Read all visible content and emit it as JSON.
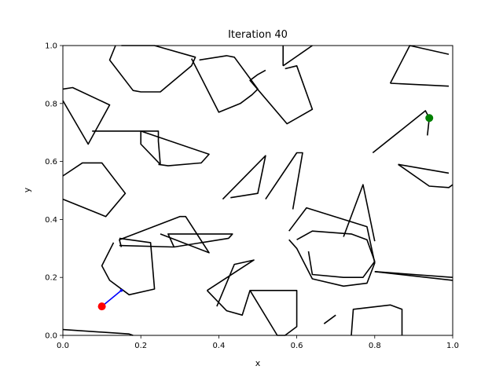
{
  "chart_data": {
    "type": "line",
    "title": "Iteration 40",
    "xlabel": "x",
    "ylabel": "y",
    "xlim": [
      0,
      1
    ],
    "ylim": [
      0,
      1
    ],
    "xticks": [
      "0.0",
      "0.2",
      "0.4",
      "0.6",
      "0.8",
      "1.0"
    ],
    "yticks": [
      "0.0",
      "0.2",
      "0.4",
      "0.6",
      "0.8",
      "1.0"
    ],
    "grid": false,
    "start": {
      "x": 0.1,
      "y": 0.1,
      "color": "#ff0000"
    },
    "goal": {
      "x": 0.94,
      "y": 0.75,
      "color": "#008000"
    },
    "path": {
      "color": "#0000ff",
      "points": [
        [
          0.1,
          0.1
        ],
        [
          0.15,
          0.155
        ]
      ]
    },
    "obstacles": [
      [
        [
          0.0,
          0.85
        ],
        [
          0.025,
          0.855
        ],
        [
          0.12,
          0.795
        ],
        [
          0.065,
          0.66
        ],
        [
          0.0,
          0.81
        ]
      ],
      [
        [
          0.15,
          1.0
        ],
        [
          0.235,
          1.0
        ],
        [
          0.34,
          0.96
        ],
        [
          0.33,
          0.93
        ],
        [
          0.25,
          0.84
        ],
        [
          0.2,
          0.84
        ],
        [
          0.18,
          0.845
        ],
        [
          0.12,
          0.95
        ],
        [
          0.135,
          1.0
        ]
      ],
      [
        [
          0.075,
          0.705
        ],
        [
          0.245,
          0.705
        ],
        [
          0.245,
          0.67
        ],
        [
          0.25,
          0.59
        ],
        [
          0.2,
          0.66
        ],
        [
          0.2,
          0.705
        ],
        [
          0.375,
          0.625
        ],
        [
          0.355,
          0.595
        ],
        [
          0.27,
          0.585
        ],
        [
          0.245,
          0.59
        ]
      ],
      [
        [
          0.35,
          0.95
        ],
        [
          0.42,
          0.965
        ],
        [
          0.44,
          0.96
        ],
        [
          0.5,
          0.85
        ],
        [
          0.485,
          0.83
        ],
        [
          0.455,
          0.8
        ],
        [
          0.4,
          0.77
        ],
        [
          0.33,
          0.955
        ]
      ],
      [
        [
          0.57,
          0.92
        ],
        [
          0.6,
          0.93
        ],
        [
          0.64,
          0.78
        ],
        [
          0.575,
          0.73
        ],
        [
          0.48,
          0.88
        ],
        [
          0.5,
          0.9
        ],
        [
          0.52,
          0.915
        ]
      ],
      [
        [
          0.565,
          0.93
        ],
        [
          0.565,
          1.0
        ]
      ],
      [
        [
          0.565,
          0.93
        ],
        [
          0.64,
          1.0
        ]
      ],
      [
        [
          0.84,
          0.87
        ],
        [
          0.89,
          1.0
        ],
        [
          0.99,
          0.97
        ]
      ],
      [
        [
          0.84,
          0.87
        ],
        [
          0.99,
          0.86
        ]
      ],
      [
        [
          0.0,
          0.55
        ],
        [
          0.05,
          0.595
        ],
        [
          0.1,
          0.595
        ],
        [
          0.16,
          0.49
        ],
        [
          0.11,
          0.41
        ],
        [
          0.0,
          0.47
        ]
      ],
      [
        [
          0.41,
          0.47
        ],
        [
          0.52,
          0.62
        ],
        [
          0.5,
          0.49
        ],
        [
          0.43,
          0.475
        ]
      ],
      [
        [
          0.52,
          0.47
        ],
        [
          0.6,
          0.63
        ],
        [
          0.615,
          0.63
        ],
        [
          0.59,
          0.435
        ]
      ],
      [
        [
          0.795,
          0.63
        ],
        [
          0.93,
          0.775
        ],
        [
          0.94,
          0.75
        ],
        [
          0.935,
          0.69
        ]
      ],
      [
        [
          0.86,
          0.59
        ],
        [
          0.94,
          0.515
        ],
        [
          0.99,
          0.51
        ],
        [
          1.0,
          0.52
        ]
      ],
      [
        [
          0.86,
          0.59
        ],
        [
          0.99,
          0.56
        ]
      ],
      [
        [
          0.15,
          0.305
        ],
        [
          0.145,
          0.33
        ],
        [
          0.3,
          0.41
        ],
        [
          0.315,
          0.41
        ],
        [
          0.375,
          0.285
        ],
        [
          0.25,
          0.35
        ]
      ],
      [
        [
          0.145,
          0.335
        ],
        [
          0.225,
          0.32
        ],
        [
          0.235,
          0.16
        ],
        [
          0.17,
          0.14
        ],
        [
          0.12,
          0.19
        ],
        [
          0.1,
          0.24
        ],
        [
          0.13,
          0.32
        ]
      ],
      [
        [
          0.145,
          0.31
        ],
        [
          0.285,
          0.305
        ],
        [
          0.27,
          0.35
        ],
        [
          0.435,
          0.35
        ],
        [
          0.425,
          0.335
        ],
        [
          0.285,
          0.305
        ]
      ],
      [
        [
          0.37,
          0.155
        ],
        [
          0.49,
          0.26
        ],
        [
          0.44,
          0.245
        ],
        [
          0.395,
          0.1
        ]
      ],
      [
        [
          0.37,
          0.155
        ],
        [
          0.42,
          0.085
        ],
        [
          0.46,
          0.07
        ],
        [
          0.48,
          0.155
        ],
        [
          0.6,
          0.155
        ],
        [
          0.6,
          0.03
        ],
        [
          0.57,
          0.0
        ],
        [
          0.55,
          0.0
        ],
        [
          0.48,
          0.155
        ]
      ],
      [
        [
          0.58,
          0.36
        ],
        [
          0.625,
          0.44
        ],
        [
          0.78,
          0.375
        ],
        [
          0.8,
          0.25
        ],
        [
          0.78,
          0.18
        ],
        [
          0.72,
          0.17
        ],
        [
          0.64,
          0.195
        ],
        [
          0.6,
          0.3
        ],
        [
          0.58,
          0.33
        ]
      ],
      [
        [
          0.6,
          0.33
        ],
        [
          0.64,
          0.36
        ],
        [
          0.74,
          0.35
        ],
        [
          0.78,
          0.33
        ],
        [
          0.8,
          0.255
        ],
        [
          0.77,
          0.2
        ],
        [
          0.72,
          0.2
        ],
        [
          0.64,
          0.21
        ],
        [
          0.63,
          0.29
        ]
      ],
      [
        [
          0.72,
          0.34
        ],
        [
          0.77,
          0.52
        ],
        [
          0.8,
          0.325
        ]
      ],
      [
        [
          0.8,
          0.22
        ],
        [
          1.0,
          0.2
        ]
      ],
      [
        [
          0.8,
          0.22
        ],
        [
          1.0,
          0.19
        ]
      ],
      [
        [
          0.67,
          0.04
        ],
        [
          0.7,
          0.07
        ]
      ],
      [
        [
          0.74,
          0.0
        ],
        [
          0.745,
          0.09
        ],
        [
          0.84,
          0.105
        ],
        [
          0.87,
          0.09
        ],
        [
          0.87,
          0.0
        ]
      ],
      [
        [
          0.0,
          0.02
        ],
        [
          0.17,
          0.005
        ],
        [
          0.18,
          0.0
        ]
      ]
    ]
  }
}
